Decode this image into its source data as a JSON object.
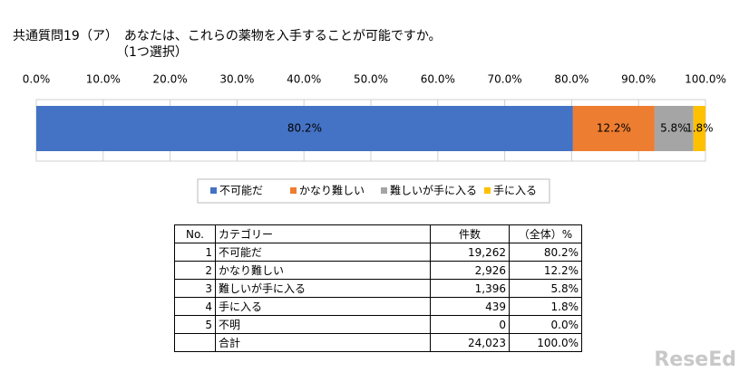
{
  "chart_data": {
    "type": "stacked-bar-horizontal",
    "title": "共通質問19（ア）　あなたは、これらの薬物を入手することが可能ですか。",
    "subtitle": "（1つ選択）",
    "xlim": [
      0,
      100
    ],
    "xticks": [
      {
        "value": 0,
        "label": "0.0%"
      },
      {
        "value": 10,
        "label": "10.0%"
      },
      {
        "value": 20,
        "label": "20.0%"
      },
      {
        "value": 30,
        "label": "30.0%"
      },
      {
        "value": 40,
        "label": "40.0%"
      },
      {
        "value": 50,
        "label": "50.0%"
      },
      {
        "value": 60,
        "label": "60.0%"
      },
      {
        "value": 70,
        "label": "70.0%"
      },
      {
        "value": 80,
        "label": "80.0%"
      },
      {
        "value": 90,
        "label": "90.0%"
      },
      {
        "value": 100,
        "label": "100.0%"
      }
    ],
    "grid": true,
    "legend": "bottom",
    "series": [
      {
        "name": "不可能だ",
        "color": "#4472c4",
        "values": [
          80.2
        ],
        "value_labels": [
          "80.2%"
        ]
      },
      {
        "name": "かなり難しい",
        "color": "#ed7d31",
        "values": [
          12.2
        ],
        "value_labels": [
          "12.2%"
        ]
      },
      {
        "name": "難しいが手に入る",
        "color": "#a5a5a5",
        "values": [
          5.8
        ],
        "value_labels": [
          "5.8%"
        ]
      },
      {
        "name": "手に入る",
        "color": "#ffc000",
        "values": [
          1.8
        ],
        "value_labels": [
          "1.8%"
        ]
      }
    ]
  },
  "table": {
    "header": [
      "No.",
      "カテゴリー",
      "件数",
      "（全体）%"
    ],
    "rows": [
      [
        "1",
        "不可能だ",
        "19,262",
        "80.2%"
      ],
      [
        "2",
        "かなり難しい",
        "2,926",
        "12.2%"
      ],
      [
        "3",
        "難しいが手に入る",
        "1,396",
        "5.8%"
      ],
      [
        "4",
        "手に入る",
        "439",
        "1.8%"
      ],
      [
        "5",
        "不明",
        "0",
        "0.0%"
      ],
      [
        null,
        "合計",
        "24,023",
        "100.0%"
      ]
    ]
  },
  "logo": "ReseEd"
}
